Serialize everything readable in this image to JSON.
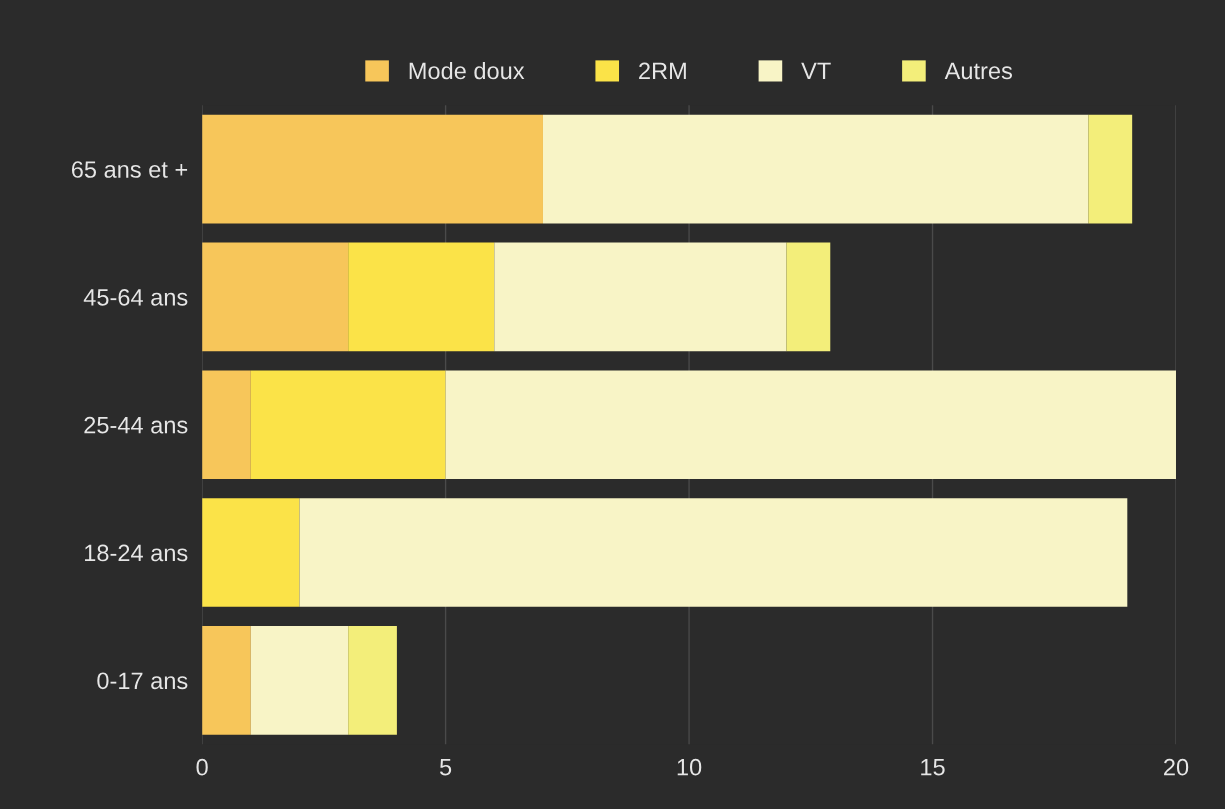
{
  "chart_data": {
    "type": "bar",
    "orientation": "horizontal",
    "stacked": true,
    "categories": [
      "65 ans et +",
      "45-64 ans",
      "25-44 ans",
      "18-24 ans",
      "0-17 ans"
    ],
    "series": [
      {
        "name": "Mode doux",
        "color": "#f7c65a",
        "values": [
          7,
          3,
          1,
          0,
          1
        ]
      },
      {
        "name": "2RM",
        "color": "#fbe348",
        "values": [
          0,
          3,
          4,
          2,
          0
        ]
      },
      {
        "name": "VT",
        "color": "#f8f4c6",
        "values": [
          11.2,
          6,
          15,
          17,
          2
        ]
      },
      {
        "name": "Autres",
        "color": "#f3ee7a",
        "values": [
          0.9,
          0.9,
          0,
          0,
          1
        ]
      }
    ],
    "xlim": [
      0,
      20
    ],
    "xticks": [
      0,
      5,
      10,
      15,
      20
    ],
    "grid": "x",
    "legend": "top"
  }
}
